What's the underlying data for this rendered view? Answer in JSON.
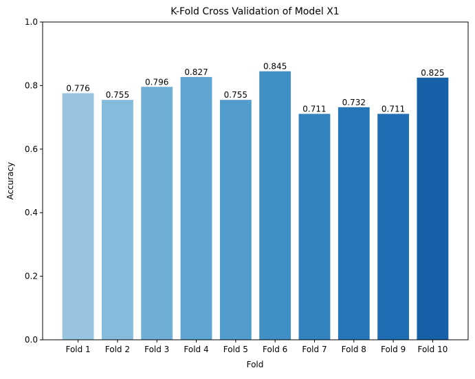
{
  "chart_data": {
    "type": "bar",
    "title": "K-Fold Cross Validation of Model X1",
    "xlabel": "Fold",
    "ylabel": "Accuracy",
    "categories": [
      "Fold 1",
      "Fold 2",
      "Fold 3",
      "Fold 4",
      "Fold 5",
      "Fold 6",
      "Fold 7",
      "Fold 8",
      "Fold 9",
      "Fold 10"
    ],
    "values": [
      0.776,
      0.755,
      0.796,
      0.827,
      0.755,
      0.845,
      0.711,
      0.732,
      0.711,
      0.825
    ],
    "value_labels": [
      "0.776",
      "0.755",
      "0.796",
      "0.827",
      "0.755",
      "0.845",
      "0.711",
      "0.732",
      "0.711",
      "0.825"
    ],
    "ylim": [
      0,
      1
    ],
    "yticks": [
      0,
      0.2,
      0.4,
      0.6,
      0.8,
      1
    ],
    "ytick_labels": [
      "0.0",
      "0.2",
      "0.4",
      "0.6",
      "0.8",
      "1.0"
    ],
    "grid": false,
    "colors": [
      "#98c4e0",
      "#86bbdc",
      "#6fafd5",
      "#5ea5d1",
      "#519ccc",
      "#4090c6",
      "#3383be",
      "#2777b8",
      "#1f6db3",
      "#1661a8"
    ]
  }
}
